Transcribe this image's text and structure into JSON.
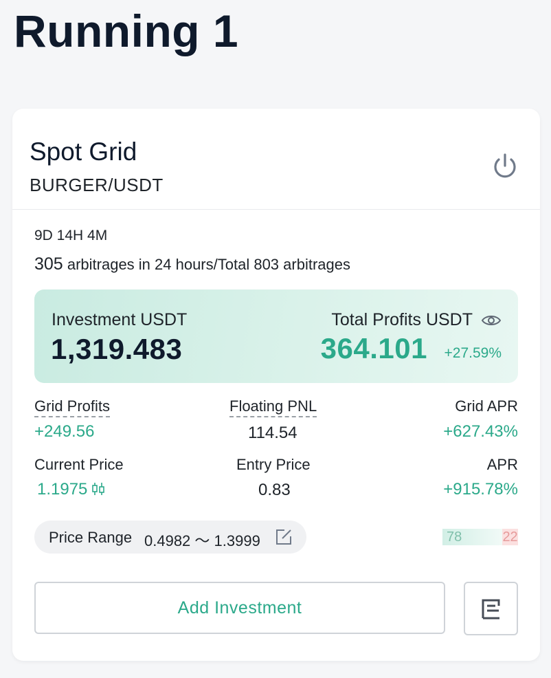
{
  "header": {
    "title": "Running 1"
  },
  "card": {
    "strategy": "Spot Grid",
    "pair": "BURGER/USDT",
    "power_icon": "power-icon",
    "run_time": "9D 14H 4M",
    "arbitrage": {
      "count_24h": "305",
      "text": "arbitrages in 24 hours/Total 803 arbitrages"
    },
    "summary": {
      "investment_label": "Investment USDT",
      "investment_value": "1,319.483",
      "total_profits_label": "Total Profits USDT",
      "total_profits_value": "364.101",
      "total_profits_percent": "+27.59%",
      "eye_icon": "eye-icon"
    },
    "stats": {
      "grid_profits_label": "Grid Profits",
      "grid_profits_value": "+249.56",
      "floating_pnl_label": "Floating PNL",
      "floating_pnl_value": "114.54",
      "grid_apr_label": "Grid APR",
      "grid_apr_value": "+627.43%",
      "current_price_label": "Current Price",
      "current_price_value": "1.1975",
      "entry_price_label": "Entry Price",
      "entry_price_value": "0.83",
      "apr_label": "APR",
      "apr_value": "+915.78%"
    },
    "price_range": {
      "label": "Price Range",
      "value": "0.4982 ～ 1.3999"
    },
    "ratio": {
      "buy": "78",
      "sell": "22"
    },
    "actions": {
      "add_investment_label": "Add Investment"
    }
  },
  "colors": {
    "accent_green": "#2ba98a",
    "sell_red": "#e69a9a"
  }
}
